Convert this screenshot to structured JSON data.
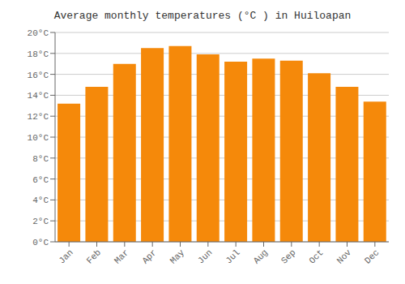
{
  "chart_data": {
    "type": "bar",
    "title": "Average monthly temperatures (°C ) in Huiloapan",
    "categories": [
      "Jan",
      "Feb",
      "Mar",
      "Apr",
      "May",
      "Jun",
      "Jul",
      "Aug",
      "Sep",
      "Oct",
      "Nov",
      "Dec"
    ],
    "values": [
      13.2,
      14.8,
      17.0,
      18.5,
      18.7,
      17.9,
      17.2,
      17.5,
      17.3,
      16.1,
      14.8,
      13.4
    ],
    "color": "#F5890A",
    "ylim": [
      0,
      20
    ],
    "yticks": [
      {
        "value": 0,
        "label": "0°C"
      },
      {
        "value": 2,
        "label": "2°C"
      },
      {
        "value": 4,
        "label": "4°C"
      },
      {
        "value": 6,
        "label": "6°C"
      },
      {
        "value": 8,
        "label": "8°C"
      },
      {
        "value": 10,
        "label": "10°C"
      },
      {
        "value": 12,
        "label": "12°C"
      },
      {
        "value": 14,
        "label": "14°C"
      },
      {
        "value": 16,
        "label": "16°C"
      },
      {
        "value": 18,
        "label": "18°C"
      },
      {
        "value": 20,
        "label": "20°C"
      }
    ],
    "grid": true
  }
}
